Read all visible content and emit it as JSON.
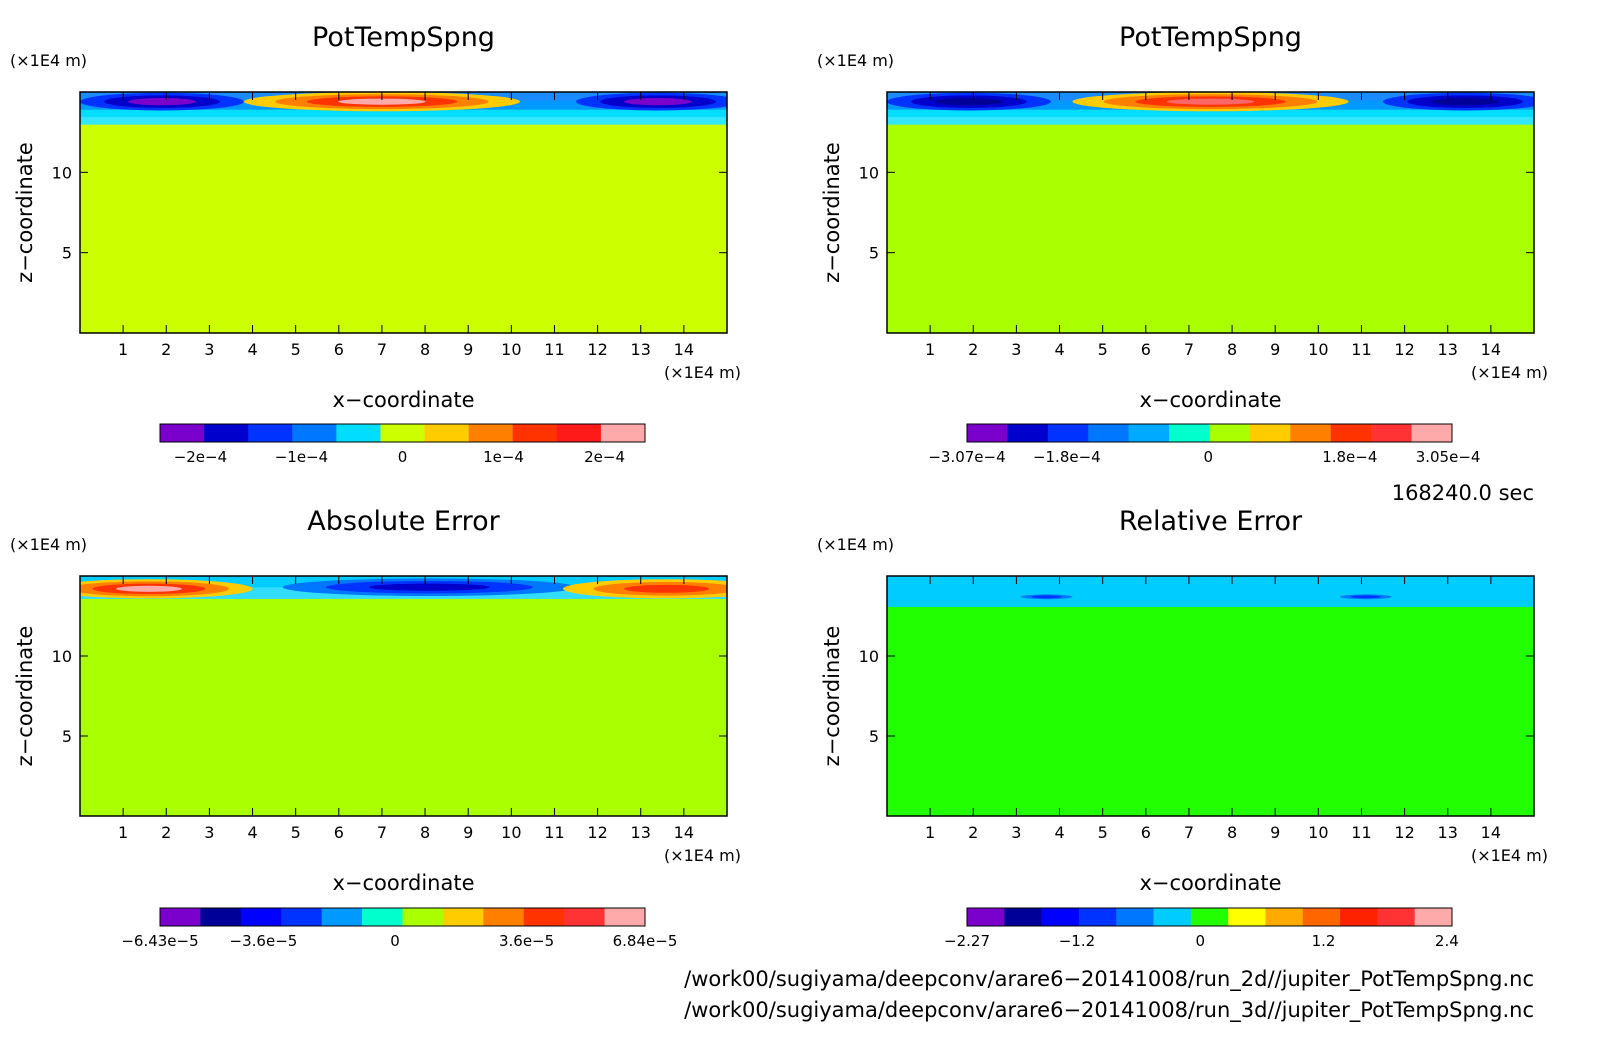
{
  "chart_data": [
    {
      "type": "heatmap",
      "title": "PotTempSpng",
      "xlabel": "x−coordinate",
      "ylabel": "z−coordinate",
      "x_unit": "(×1E4 m)",
      "y_unit": "(×1E4 m)",
      "xlim": [
        0,
        15
      ],
      "ylim": [
        0,
        15
      ],
      "xticks": [
        1,
        2,
        3,
        4,
        5,
        6,
        7,
        8,
        9,
        10,
        11,
        12,
        13,
        14
      ],
      "yticks": [
        5,
        10
      ],
      "background_color": "#ccff00",
      "layers": [
        {
          "y": [
            13.9,
            15.0
          ],
          "colors": [
            "#1a8cff",
            "#0099ff"
          ]
        },
        {
          "y": [
            13.0,
            13.9
          ],
          "colors": [
            "#00ddff",
            "#33e6ff"
          ]
        }
      ],
      "blobs": [
        {
          "x": 1.9,
          "y": 14.4,
          "rx": 1.9,
          "ry": 0.55,
          "levels": [
            "#0033ff",
            "#0000cc",
            "#7a00cc"
          ]
        },
        {
          "x": 7.0,
          "y": 14.4,
          "rx": 3.2,
          "ry": 0.6,
          "levels": [
            "#ffcc00",
            "#ff8000",
            "#ff3300",
            "#ffaaaa"
          ]
        },
        {
          "x": 13.4,
          "y": 14.4,
          "rx": 1.9,
          "ry": 0.55,
          "levels": [
            "#0033ff",
            "#0000cc",
            "#7a00cc"
          ]
        }
      ],
      "colorbar": {
        "colors": [
          "#7a00cc",
          "#0000cc",
          "#0033ff",
          "#0077ff",
          "#00ddff",
          "#ccff00",
          "#ffcc00",
          "#ff8000",
          "#ff3300",
          "#ff1a1a",
          "#ffaaaa"
        ],
        "tick_labels": [
          "−2e−4",
          "−1e−4",
          "0",
          "1e−4",
          "2e−4"
        ],
        "tick_values": [
          -0.0002,
          -0.0001,
          0,
          0.0001,
          0.0002
        ],
        "range": [
          -0.00024,
          0.00024
        ]
      }
    },
    {
      "type": "heatmap",
      "title": "PotTempSpng",
      "xlabel": "x−coordinate",
      "ylabel": "z−coordinate",
      "x_unit": "(×1E4 m)",
      "y_unit": "(×1E4 m)",
      "xlim": [
        0,
        15
      ],
      "ylim": [
        0,
        15
      ],
      "xticks": [
        1,
        2,
        3,
        4,
        5,
        6,
        7,
        8,
        9,
        10,
        11,
        12,
        13,
        14
      ],
      "yticks": [
        5,
        10
      ],
      "background_color": "#aaff00",
      "layers": [
        {
          "y": [
            13.9,
            15.0
          ],
          "colors": [
            "#1a8cff",
            "#0099ff"
          ]
        },
        {
          "y": [
            13.0,
            13.9
          ],
          "colors": [
            "#00ddff",
            "#33e6ff"
          ]
        }
      ],
      "blobs": [
        {
          "x": 1.9,
          "y": 14.4,
          "rx": 1.9,
          "ry": 0.55,
          "levels": [
            "#0033ff",
            "#0000cc",
            "#000099"
          ]
        },
        {
          "x": 7.5,
          "y": 14.4,
          "rx": 3.2,
          "ry": 0.6,
          "levels": [
            "#ffcc00",
            "#ff8000",
            "#ff3300",
            "#ff6666"
          ]
        },
        {
          "x": 13.4,
          "y": 14.4,
          "rx": 1.9,
          "ry": 0.55,
          "levels": [
            "#0033ff",
            "#0000cc",
            "#000099"
          ]
        }
      ],
      "colorbar": {
        "colors": [
          "#7a00cc",
          "#0000cc",
          "#0033ff",
          "#0077ff",
          "#00aaff",
          "#00ffcc",
          "#aaff00",
          "#ffcc00",
          "#ff8000",
          "#ff3300",
          "#ff3333",
          "#ffaaaa"
        ],
        "tick_labels": [
          "−3.07e−4",
          "−1.8e−4",
          "0",
          "1.8e−4",
          "3.05e−4"
        ],
        "tick_values": [
          -0.000307,
          -0.00018,
          0,
          0.00018,
          0.000305
        ],
        "range": [
          -0.000307,
          0.00031
        ]
      }
    },
    {
      "type": "heatmap",
      "title": "Absolute Error",
      "xlabel": "x−coordinate",
      "ylabel": "z−coordinate",
      "x_unit": "(×1E4 m)",
      "y_unit": "(×1E4 m)",
      "xlim": [
        0,
        15
      ],
      "ylim": [
        0,
        15
      ],
      "xticks": [
        1,
        2,
        3,
        4,
        5,
        6,
        7,
        8,
        9,
        10,
        11,
        12,
        13,
        14
      ],
      "yticks": [
        5,
        10
      ],
      "background_color": "#aaff00",
      "layers": [
        {
          "y": [
            13.6,
            15.0
          ],
          "colors": [
            "#00ccff",
            "#33ddff"
          ]
        }
      ],
      "blobs": [
        {
          "x": 1.6,
          "y": 14.2,
          "rx": 2.4,
          "ry": 0.6,
          "levels": [
            "#ffcc00",
            "#ff8000",
            "#ff3300",
            "#ffaaaa"
          ]
        },
        {
          "x": 8.1,
          "y": 14.3,
          "rx": 3.4,
          "ry": 0.55,
          "levels": [
            "#0077ff",
            "#0033ff",
            "#0000cc"
          ]
        },
        {
          "x": 13.6,
          "y": 14.2,
          "rx": 2.4,
          "ry": 0.6,
          "levels": [
            "#ffcc00",
            "#ff8000",
            "#ff3300"
          ]
        }
      ],
      "colorbar": {
        "colors": [
          "#7a00cc",
          "#000099",
          "#0000ff",
          "#0033ff",
          "#0099ff",
          "#00ffcc",
          "#aaff00",
          "#ffcc00",
          "#ff8000",
          "#ff3300",
          "#ff3333",
          "#ffaaaa"
        ],
        "tick_labels": [
          "−6.43e−5",
          "−3.6e−5",
          "0",
          "3.6e−5",
          "6.84e−5"
        ],
        "tick_values": [
          -6.43e-05,
          -3.6e-05,
          0,
          3.6e-05,
          6.84e-05
        ],
        "range": [
          -6.43e-05,
          6.84e-05
        ]
      }
    },
    {
      "type": "heatmap",
      "title": "Relative Error",
      "xlabel": "x−coordinate",
      "ylabel": "z−coordinate",
      "x_unit": "(×1E4 m)",
      "y_unit": "(×1E4 m)",
      "xlim": [
        0,
        15
      ],
      "ylim": [
        0,
        15
      ],
      "xticks": [
        1,
        2,
        3,
        4,
        5,
        6,
        7,
        8,
        9,
        10,
        11,
        12,
        13,
        14
      ],
      "yticks": [
        5,
        10
      ],
      "background_color": "#22ff00",
      "layers": [
        {
          "y": [
            13.1,
            15.0
          ],
          "colors": [
            "#00ccff",
            "#00ccff"
          ]
        }
      ],
      "blobs": [
        {
          "x": 3.7,
          "y": 13.7,
          "rx": 0.6,
          "ry": 0.15,
          "levels": [
            "#0077ff",
            "#0033ff"
          ]
        },
        {
          "x": 11.1,
          "y": 13.7,
          "rx": 0.6,
          "ry": 0.15,
          "levels": [
            "#0077ff",
            "#0033ff"
          ]
        }
      ],
      "colorbar": {
        "colors": [
          "#7a00cc",
          "#000099",
          "#0000ff",
          "#0033ff",
          "#0077ff",
          "#00ccff",
          "#22ff00",
          "#ffff00",
          "#ffaa00",
          "#ff6600",
          "#ff2200",
          "#ff3333",
          "#ffaaaa"
        ],
        "tick_labels": [
          "−2.27",
          "−1.2",
          "0",
          "1.2",
          "2.4"
        ],
        "tick_values": [
          -2.27,
          -1.2,
          0,
          1.2,
          2.4
        ],
        "range": [
          -2.27,
          2.45
        ]
      }
    }
  ],
  "time_label": "168240.0 sec",
  "footer": {
    "line1": "/work00/sugiyama/deepconv/arare6−20141008/run_2d//jupiter_PotTempSpng.nc",
    "line2": "/work00/sugiyama/deepconv/arare6−20141008/run_3d//jupiter_PotTempSpng.nc"
  }
}
